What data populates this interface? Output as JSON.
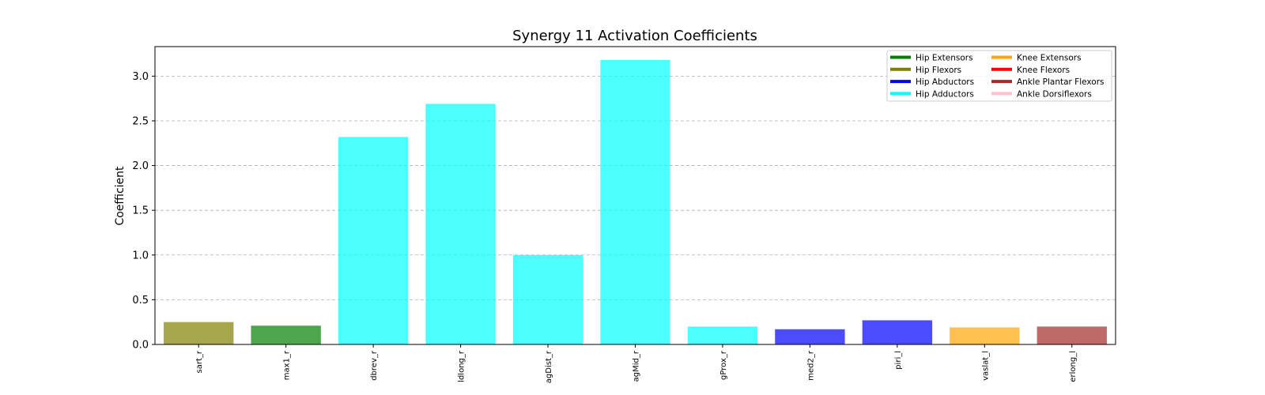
{
  "chart_data": {
    "type": "bar",
    "title": "Synergy 11 Activation Coefficients",
    "xlabel": "",
    "ylabel": "Coefficient",
    "ylim": [
      0,
      3.33
    ],
    "yticks": [
      "0.0",
      "0.5",
      "1.0",
      "1.5",
      "2.0",
      "2.5",
      "3.0"
    ],
    "grid": "horizontal dashed",
    "legend_placement": "top-right",
    "categories": [
      "sart_r",
      "max1_r",
      "dbrev_r",
      "ldlong_r",
      "agDist_r",
      "agMid_r",
      "gProx_r",
      "med2_r",
      "piri_l",
      "vaslat_l",
      "erlong_l"
    ],
    "values": [
      0.25,
      0.21,
      2.32,
      2.69,
      1.0,
      3.18,
      0.2,
      0.17,
      0.27,
      0.19,
      0.2
    ],
    "bar_groups": [
      "Hip Flexors",
      "Hip Extensors",
      "Hip Adductors",
      "Hip Adductors",
      "Hip Adductors",
      "Hip Adductors",
      "Hip Adductors",
      "Hip Abductors",
      "Hip Abductors",
      "Knee Extensors",
      "Ankle Plantar Flexors"
    ],
    "legend": [
      {
        "name": "Hip Extensors",
        "color": "#008000"
      },
      {
        "name": "Hip Flexors",
        "color": "#808000"
      },
      {
        "name": "Hip Abductors",
        "color": "#0000ff"
      },
      {
        "name": "Hip Adductors",
        "color": "#00ffff"
      },
      {
        "name": "Knee Extensors",
        "color": "#ffa500"
      },
      {
        "name": "Knee Flexors",
        "color": "#ff0000"
      },
      {
        "name": "Ankle Plantar Flexors",
        "color": "#a52a2a"
      },
      {
        "name": "Ankle Dorsiflexors",
        "color": "#ffc0cb"
      }
    ],
    "bar_opacity": 0.7
  }
}
